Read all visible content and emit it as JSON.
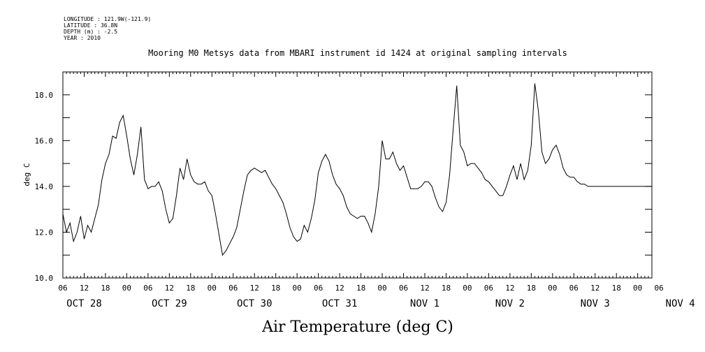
{
  "header": {
    "longitude": "LONGITUDE : 121.9W(-121.9)",
    "latitude": "LATITUDE : 36.8N",
    "depth": "DEPTH (m) : -2.5",
    "year": "YEAR : 2010"
  },
  "chart_data": {
    "type": "line",
    "title": "Mooring M0 Metsys data from MBARI instrument id 1424 at original sampling intervals",
    "xlabel": "Air Temperature (deg C)",
    "ylabel": "deg C",
    "ylim": [
      10.0,
      19.0
    ],
    "xlim_hours": [
      6,
      172
    ],
    "y_ticks": [
      "10.0",
      "12.0",
      "14.0",
      "16.0",
      "18.0"
    ],
    "x_hour_labels": [
      "06",
      "12",
      "18",
      "00",
      "06",
      "12",
      "18",
      "00",
      "06",
      "12",
      "18",
      "00",
      "06",
      "12",
      "18",
      "00",
      "06",
      "12",
      "18",
      "00",
      "06",
      "12",
      "18",
      "00",
      "06",
      "12",
      "18",
      "00",
      "06"
    ],
    "day_labels": [
      "OCT 28",
      "OCT 29",
      "OCT 30",
      "OCT 31",
      "NOV  1",
      "NOV  2",
      "NOV  3",
      "NOV  4"
    ],
    "grid": false,
    "series": [
      {
        "x": [
          6,
          7,
          8,
          9,
          10,
          11,
          12,
          13,
          14,
          15,
          16,
          17,
          18,
          19,
          20,
          21,
          22,
          23,
          24,
          25,
          26,
          27,
          28,
          29,
          30,
          31,
          32,
          33,
          34,
          35,
          36,
          37,
          38,
          39,
          40,
          41,
          42,
          43,
          44,
          45,
          46,
          47,
          48,
          49,
          50,
          51,
          52,
          53,
          54,
          55,
          56,
          57,
          58,
          59,
          60,
          61,
          62,
          63,
          64,
          65,
          66,
          67,
          68,
          69,
          70,
          71,
          72,
          73,
          74,
          75,
          76,
          77,
          78,
          79,
          80,
          81,
          82,
          83,
          84,
          85,
          86,
          87,
          88,
          89,
          90,
          91,
          92,
          93,
          94,
          95,
          96,
          97,
          98,
          99,
          100,
          101,
          102,
          103,
          104,
          105,
          106,
          107,
          108,
          109,
          110,
          111,
          112,
          113,
          114,
          115,
          116,
          117,
          118,
          119,
          120,
          121,
          122,
          123,
          124,
          125,
          126,
          127,
          128,
          129,
          130,
          131,
          132,
          133,
          134,
          135,
          136,
          137,
          138,
          139,
          140,
          141,
          142,
          143,
          144,
          145,
          146,
          147,
          148,
          149,
          150,
          151,
          152,
          153,
          154,
          155,
          156,
          157,
          158,
          159,
          160,
          161,
          162,
          163,
          164,
          165,
          166,
          167,
          168,
          169,
          170,
          171,
          172
        ],
        "values": [
          12.8,
          12.0,
          12.4,
          11.6,
          12.0,
          12.7,
          11.7,
          12.3,
          12.0,
          12.6,
          13.2,
          14.3,
          15.0,
          15.4,
          16.2,
          16.1,
          16.8,
          17.1,
          16.2,
          15.2,
          14.5,
          15.4,
          16.6,
          14.3,
          13.9,
          14.0,
          14.0,
          14.2,
          13.8,
          13.0,
          12.4,
          12.6,
          13.6,
          14.8,
          14.3,
          15.2,
          14.5,
          14.2,
          14.1,
          14.1,
          14.2,
          13.8,
          13.6,
          12.8,
          11.9,
          11.0,
          11.2,
          11.5,
          11.8,
          12.2,
          13.0,
          13.8,
          14.5,
          14.7,
          14.8,
          14.7,
          14.6,
          14.7,
          14.4,
          14.1,
          13.9,
          13.6,
          13.3,
          12.8,
          12.2,
          11.8,
          11.6,
          11.7,
          12.3,
          12.0,
          12.6,
          13.4,
          14.6,
          15.1,
          15.4,
          15.1,
          14.5,
          14.1,
          13.9,
          13.6,
          13.1,
          12.8,
          12.7,
          12.6,
          12.7,
          12.7,
          12.4,
          12.0,
          12.8,
          14.0,
          16.0,
          15.2,
          15.2,
          15.5,
          15.0,
          14.7,
          14.9,
          14.4,
          13.9,
          13.9,
          13.9,
          14.0,
          14.2,
          14.2,
          14.0,
          13.5,
          13.1,
          12.9,
          13.3,
          14.5,
          16.5,
          18.4,
          15.8,
          15.5,
          14.9,
          15.0,
          15.0,
          14.8,
          14.6,
          14.3,
          14.2,
          14.0,
          13.8,
          13.6,
          13.6,
          14.0,
          14.5,
          14.9,
          14.3,
          15.0,
          14.3,
          14.7,
          15.8,
          18.5,
          17.3,
          15.5,
          15.0,
          15.2,
          15.6,
          15.8,
          15.4,
          14.8,
          14.5,
          14.4,
          14.4,
          14.2,
          14.1,
          14.1,
          14.0,
          14.0,
          14.0,
          14.0,
          14.0,
          14.0,
          14.0,
          14.0,
          14.0,
          14.0,
          14.0,
          14.0,
          14.0,
          14.0,
          14.0,
          14.0,
          14.0,
          14.0,
          14.0
        ]
      }
    ]
  }
}
